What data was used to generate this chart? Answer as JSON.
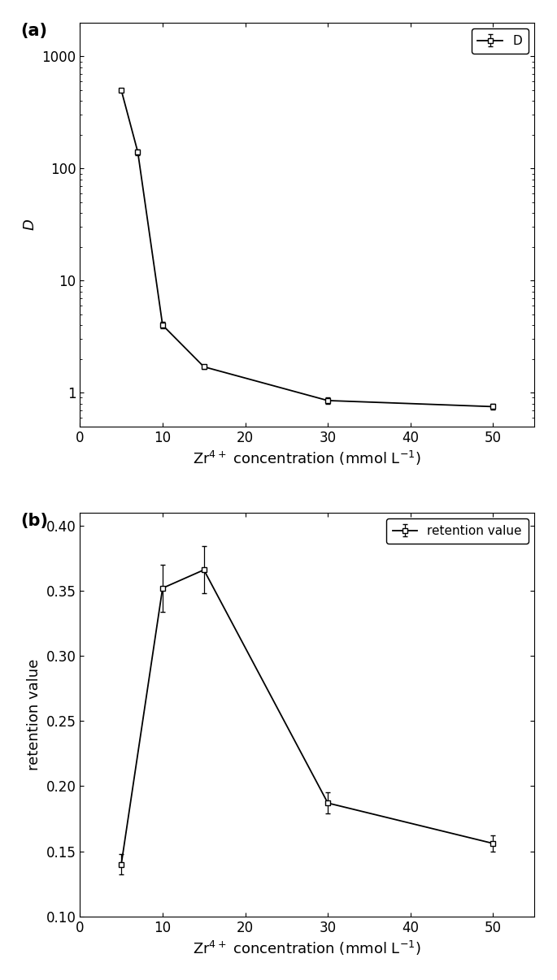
{
  "panel_a": {
    "x": [
      5,
      7,
      10,
      15,
      30,
      50
    ],
    "y": [
      500,
      140,
      4.0,
      1.7,
      0.85,
      0.75
    ],
    "yerr": [
      15,
      8,
      0.25,
      0.08,
      0.05,
      0.04
    ],
    "xlabel": "Zr$^{4+}$ concentration (mmol L$^{-1}$)",
    "ylabel": "D",
    "legend_label": "D",
    "xlim": [
      0,
      55
    ],
    "ylim_log": [
      0.5,
      2000
    ],
    "xticks": [
      0,
      10,
      20,
      30,
      40,
      50
    ],
    "yticks": [
      1,
      10,
      100,
      1000
    ],
    "yticklabels": [
      "1",
      "10",
      "100",
      "1000"
    ],
    "label": "(a)"
  },
  "panel_b": {
    "x": [
      5,
      10,
      15,
      30,
      50
    ],
    "y": [
      0.14,
      0.352,
      0.366,
      0.187,
      0.156
    ],
    "yerr": [
      0.008,
      0.018,
      0.018,
      0.008,
      0.006
    ],
    "xlabel": "Zr$^{4+}$ concentration (mmol L$^{-1}$)",
    "ylabel": "retention value",
    "legend_label": "retention value",
    "xlim": [
      0,
      55
    ],
    "ylim": [
      0.1,
      0.41
    ],
    "yticks": [
      0.1,
      0.15,
      0.2,
      0.25,
      0.3,
      0.35,
      0.4
    ],
    "yticklabels": [
      "0.10",
      "0.15",
      "0.20",
      "0.25",
      "0.30",
      "0.35",
      "0.40"
    ],
    "xticks": [
      0,
      10,
      20,
      30,
      40,
      50
    ],
    "label": "(b)"
  },
  "line_color": "#000000",
  "marker": "s",
  "markersize": 5,
  "markerfacecolor": "#ffffff",
  "markeredgecolor": "#000000",
  "markeredgewidth": 1.0,
  "linewidth": 1.3,
  "capsize": 2.5,
  "elinewidth": 0.9,
  "label_fontsize": 13,
  "tick_fontsize": 12,
  "legend_fontsize": 11,
  "panel_label_fontsize": 15
}
